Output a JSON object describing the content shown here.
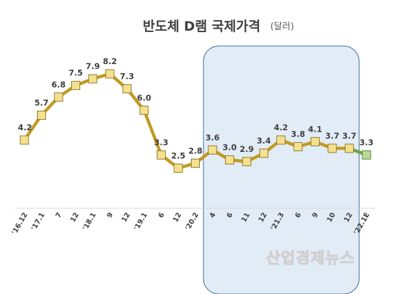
{
  "chart_data": {
    "type": "line",
    "title": "반도체 D램 국제가격",
    "unit": "(달러)",
    "categories": [
      "'16.12",
      "'17.1",
      "7",
      "12",
      "'18.1",
      "9",
      "12",
      "'19.1",
      "6",
      "12",
      "'20.2",
      "4",
      "6",
      "11",
      "12",
      "'21.3",
      "6",
      "9",
      "10",
      "12",
      "'22.1E"
    ],
    "values": [
      4.2,
      5.7,
      6.8,
      7.5,
      7.9,
      8.2,
      7.3,
      6.0,
      3.3,
      2.5,
      2.8,
      3.6,
      3.0,
      2.9,
      3.4,
      4.2,
      3.8,
      4.1,
      3.7,
      3.7,
      3.3
    ],
    "value_labels": [
      "",
      "5.7",
      "6.8",
      "7.5",
      "7.9",
      "8.2",
      "7.3",
      "6.0",
      "3.3",
      "2.5",
      "2.8",
      "3.6",
      "3.0",
      "2.9",
      "3.4",
      "4.2",
      "3.8",
      "4.1",
      "3.7",
      "3.7",
      "3.3"
    ],
    "left_label": "4.2",
    "estimate_from_index": 19,
    "highlight_range": [
      "4",
      "12"
    ],
    "colors": {
      "line": "#c29a20",
      "marker_fill": "#f4e08e",
      "marker_stroke": "#8f7a2e",
      "estimate_line": "#6fa34a",
      "estimate_marker_fill": "#b8dc9a",
      "estimate_marker_stroke": "#5a7d3a",
      "highlight_fill": "#dde9f4",
      "highlight_stroke": "#3c6e9a",
      "axis": "#d9d9d9"
    }
  },
  "watermark": "산업경제뉴스"
}
